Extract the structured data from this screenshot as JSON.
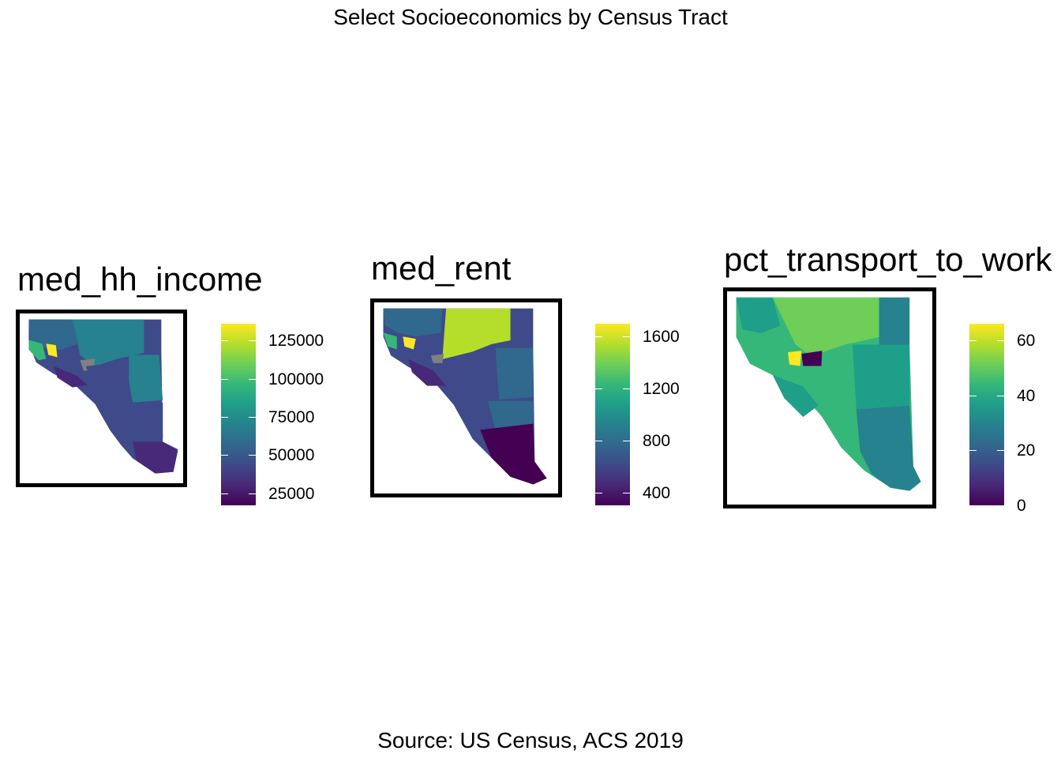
{
  "figure": {
    "title": "Select Socioeconomics by Census Tract",
    "caption": "Source: US Census, ACS 2019"
  },
  "panels": [
    {
      "name": "med_hh_income",
      "legend": {
        "min": 17000,
        "max": 136000,
        "ticks": [
          25000,
          50000,
          75000,
          100000,
          125000
        ],
        "tick_labels": [
          "25000",
          "50000",
          "75000",
          "100000",
          "125000"
        ]
      }
    },
    {
      "name": "med_rent",
      "legend": {
        "min": 300,
        "max": 1700,
        "ticks": [
          400,
          800,
          1200,
          1600
        ],
        "tick_labels": [
          "400",
          "800",
          "1200",
          "1600"
        ]
      }
    },
    {
      "name": "pct_transport_to_work",
      "legend": {
        "min": 0,
        "max": 66,
        "ticks": [
          0,
          20,
          40,
          60
        ],
        "tick_labels": [
          "0",
          "20",
          "40",
          "60"
        ]
      }
    }
  ],
  "colors": {
    "palette": "viridis",
    "viridis_stops": [
      "#440154",
      "#482878",
      "#3e4a89",
      "#31688e",
      "#26828e",
      "#1f9e89",
      "#35b779",
      "#6ece58",
      "#b5de2b",
      "#fde725"
    ],
    "missing": "#808080",
    "frame": "#000000"
  }
}
